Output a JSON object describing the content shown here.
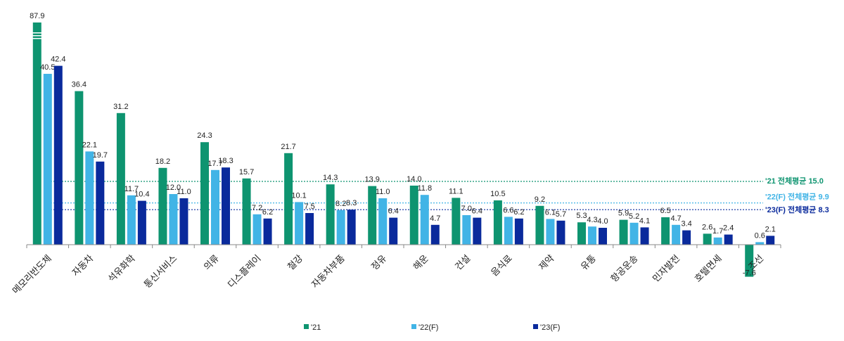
{
  "chart_data": {
    "type": "bar",
    "title": "",
    "xlabel": "",
    "ylabel": "",
    "ylim": [
      -8,
      90
    ],
    "axis_break": true,
    "grid": false,
    "legend_placement": "bottom",
    "categories": [
      "메모리반도체",
      "자동차",
      "석유화학",
      "통신서비스",
      "의류",
      "디스플레이",
      "철강",
      "자동차부품",
      "정유",
      "해운",
      "건설",
      "음식료",
      "제약",
      "유통",
      "항공운송",
      "민자발전",
      "호텔면세",
      "조선"
    ],
    "series": [
      {
        "name": "'21",
        "color": "#0e9470",
        "values": [
          87.9,
          36.4,
          31.2,
          18.2,
          24.3,
          15.7,
          21.7,
          14.3,
          13.9,
          14.0,
          11.1,
          10.5,
          9.2,
          5.3,
          5.9,
          6.5,
          2.6,
          -7.6
        ]
      },
      {
        "name": "'22(F)",
        "color": "#41b4e6",
        "values": [
          40.5,
          22.1,
          11.7,
          12.0,
          17.7,
          7.2,
          10.1,
          8.2,
          11.0,
          11.8,
          7.0,
          6.6,
          6.1,
          4.3,
          5.2,
          4.7,
          1.7,
          0.6
        ]
      },
      {
        "name": "'23(F)",
        "color": "#0a2a9c",
        "values": [
          42.4,
          19.7,
          10.4,
          11.0,
          18.3,
          6.2,
          7.5,
          8.3,
          6.4,
          4.7,
          6.4,
          6.2,
          5.7,
          4.0,
          4.1,
          3.4,
          2.4,
          2.1
        ]
      }
    ],
    "reference_lines": [
      {
        "label": "'21 전체평균 15.0",
        "value": 15.0,
        "color": "#0e9470"
      },
      {
        "label": "'22(F) 전체평균 9.9",
        "value": 9.9,
        "color": "#41b4e6"
      },
      {
        "label": "'23(F) 전체평균 8.3",
        "value": 8.3,
        "color": "#0a2a9c"
      }
    ]
  }
}
